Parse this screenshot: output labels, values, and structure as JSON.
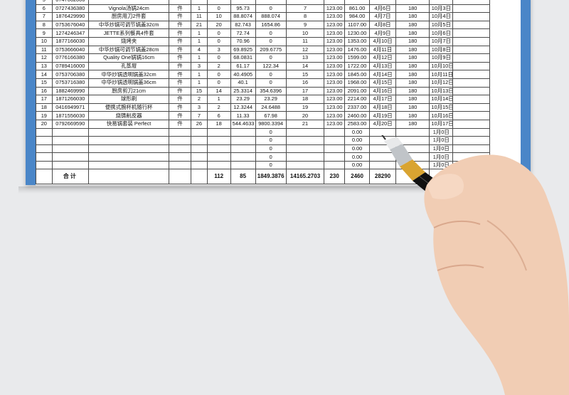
{
  "columns_count": 15,
  "rows": [
    {
      "no": "5",
      "code": "0747062006",
      "name": "",
      "unit": "",
      "qty_in": "",
      "qty_out": "",
      "price": "",
      "amount": "",
      "c9": "",
      "c10": "",
      "c11": "",
      "date": "",
      "days": "",
      "due": ""
    },
    {
      "no": "6",
      "code": "0727436380",
      "name": "Vignola汤锅24cm",
      "unit": "件",
      "qty_in": "1",
      "qty_out": "0",
      "price": "95.73",
      "amount": "0",
      "c9": "7",
      "c10": "123.00",
      "c11": "861.00",
      "date": "4月6日",
      "days": "180",
      "due": "10月3日"
    },
    {
      "no": "7",
      "code": "1876429990",
      "name": "厨房用刀2件套",
      "unit": "件",
      "qty_in": "11",
      "qty_out": "10",
      "price": "88.8074",
      "amount": "888.074",
      "c9": "8",
      "c10": "123.00",
      "c11": "984.00",
      "date": "4月7日",
      "days": "180",
      "due": "10月4日"
    },
    {
      "no": "8",
      "code": "0753676040",
      "name": "中华炒锅可调节锅盖32cm",
      "unit": "件",
      "qty_in": "21",
      "qty_out": "20",
      "price": "82.743",
      "amount": "1654.86",
      "c9": "9",
      "c10": "123.00",
      "c11": "1107.00",
      "date": "4月8日",
      "days": "180",
      "due": "10月5日"
    },
    {
      "no": "9",
      "code": "1274246347",
      "name": "JETTE系列餐具4件套",
      "unit": "件",
      "qty_in": "1",
      "qty_out": "0",
      "price": "72.74",
      "amount": "0",
      "c9": "10",
      "c10": "123.00",
      "c11": "1230.00",
      "date": "4月9日",
      "days": "180",
      "due": "10月6日"
    },
    {
      "no": "10",
      "code": "1877166030",
      "name": "烧烤夹",
      "unit": "件",
      "qty_in": "1",
      "qty_out": "0",
      "price": "70.96",
      "amount": "0",
      "c9": "11",
      "c10": "123.00",
      "c11": "1353.00",
      "date": "4月10日",
      "days": "180",
      "due": "10月7日"
    },
    {
      "no": "11",
      "code": "0753666040",
      "name": "中华炒锅可调节锅盖28cm",
      "unit": "件",
      "qty_in": "4",
      "qty_out": "3",
      "price": "69.8925",
      "amount": "209.6775",
      "c9": "12",
      "c10": "123.00",
      "c11": "1476.00",
      "date": "4月11日",
      "days": "180",
      "due": "10月8日"
    },
    {
      "no": "12",
      "code": "0776166380",
      "name": "Quality One锅锅16cm",
      "unit": "件",
      "qty_in": "1",
      "qty_out": "0",
      "price": "68.0831",
      "amount": "0",
      "c9": "13",
      "c10": "123.00",
      "c11": "1599.00",
      "date": "4月12日",
      "days": "180",
      "due": "10月9日"
    },
    {
      "no": "13",
      "code": "0789416000",
      "name": "孔蒸屉",
      "unit": "件",
      "qty_in": "3",
      "qty_out": "2",
      "price": "61.17",
      "amount": "122.34",
      "c9": "14",
      "c10": "123.00",
      "c11": "1722.00",
      "date": "4月13日",
      "days": "180",
      "due": "10月10日"
    },
    {
      "no": "14",
      "code": "0753706380",
      "name": "中华炒锅透明锅盖32cm",
      "unit": "件",
      "qty_in": "1",
      "qty_out": "0",
      "price": "40.4905",
      "amount": "0",
      "c9": "15",
      "c10": "123.00",
      "c11": "1845.00",
      "date": "4月14日",
      "days": "180",
      "due": "10月11日"
    },
    {
      "no": "15",
      "code": "0753716380",
      "name": "中华炒锅透明锅盖36cm",
      "unit": "件",
      "qty_in": "1",
      "qty_out": "0",
      "price": "40.1",
      "amount": "0",
      "c9": "16",
      "c10": "123.00",
      "c11": "1968.00",
      "date": "4月15日",
      "days": "180",
      "due": "10月12日"
    },
    {
      "no": "16",
      "code": "1882469990",
      "name": "厨房剪刀21cm",
      "unit": "件",
      "qty_in": "15",
      "qty_out": "14",
      "price": "25.3314",
      "amount": "354.6396",
      "c9": "17",
      "c10": "123.00",
      "c11": "2091.00",
      "date": "4月16日",
      "days": "180",
      "due": "10月13日"
    },
    {
      "no": "17",
      "code": "1871266030",
      "name": "球形刷",
      "unit": "件",
      "qty_in": "2",
      "qty_out": "1",
      "price": "23.29",
      "amount": "23.29",
      "c9": "18",
      "c10": "123.00",
      "c11": "2214.00",
      "date": "4月17日",
      "days": "180",
      "due": "10月14日"
    },
    {
      "no": "18",
      "code": "0416949971",
      "name": "便携式腕杯机随行杯",
      "unit": "件",
      "qty_in": "3",
      "qty_out": "2",
      "price": "12.3244",
      "amount": "24.6488",
      "c9": "19",
      "c10": "123.00",
      "c11": "2337.00",
      "date": "4月18日",
      "days": "180",
      "due": "10月15日"
    },
    {
      "no": "19",
      "code": "1871556030",
      "name": "烧铸削皮器",
      "unit": "件",
      "qty_in": "7",
      "qty_out": "6",
      "price": "11.33",
      "amount": "67.98",
      "c9": "20",
      "c10": "123.00",
      "c11": "2460.00",
      "date": "4月19日",
      "days": "180",
      "due": "10月16日"
    },
    {
      "no": "20",
      "code": "0792669590",
      "name": "快易锅套装 Perfect",
      "unit": "件",
      "qty_in": "26",
      "qty_out": "18",
      "price": "544.4633",
      "amount": "9800.3394",
      "c9": "21",
      "c10": "123.00",
      "c11": "2583.00",
      "date": "4月20日",
      "days": "180",
      "due": "10月17日"
    },
    {
      "no": "",
      "code": "",
      "name": "",
      "unit": "",
      "qty_in": "",
      "qty_out": "",
      "price": "",
      "amount": "0",
      "c9": "",
      "c10": "",
      "c11": "0.00",
      "date": "",
      "days": "",
      "due": "1月0日"
    },
    {
      "no": "",
      "code": "",
      "name": "",
      "unit": "",
      "qty_in": "",
      "qty_out": "",
      "price": "",
      "amount": "0",
      "c9": "",
      "c10": "",
      "c11": "0.00",
      "date": "",
      "days": "",
      "due": "1月0日"
    },
    {
      "no": "",
      "code": "",
      "name": "",
      "unit": "",
      "qty_in": "",
      "qty_out": "",
      "price": "",
      "amount": "0",
      "c9": "",
      "c10": "",
      "c11": "0.00",
      "date": "",
      "days": "",
      "due": "1月0日"
    },
    {
      "no": "",
      "code": "",
      "name": "",
      "unit": "",
      "qty_in": "",
      "qty_out": "",
      "price": "",
      "amount": "0",
      "c9": "",
      "c10": "",
      "c11": "0.00",
      "date": "",
      "days": "",
      "due": "1月0日"
    },
    {
      "no": "",
      "code": "",
      "name": "",
      "unit": "",
      "qty_in": "",
      "qty_out": "",
      "price": "",
      "amount": "0",
      "c9": "",
      "c10": "",
      "c11": "0.00",
      "date": "",
      "days": "",
      "due": "1月0日"
    }
  ],
  "total": {
    "label": "合计",
    "qty_in": "112",
    "qty_out": "85",
    "price": "1849.3876",
    "amount": "14165.2703",
    "c9": "230",
    "c10": "2460",
    "c11": "28290"
  },
  "colors": {
    "accent": "#4a86c8",
    "page": "#e9eaec",
    "pen_gold": "#d9a431",
    "pen_black": "#111111",
    "skin": "#f1cdb4"
  }
}
